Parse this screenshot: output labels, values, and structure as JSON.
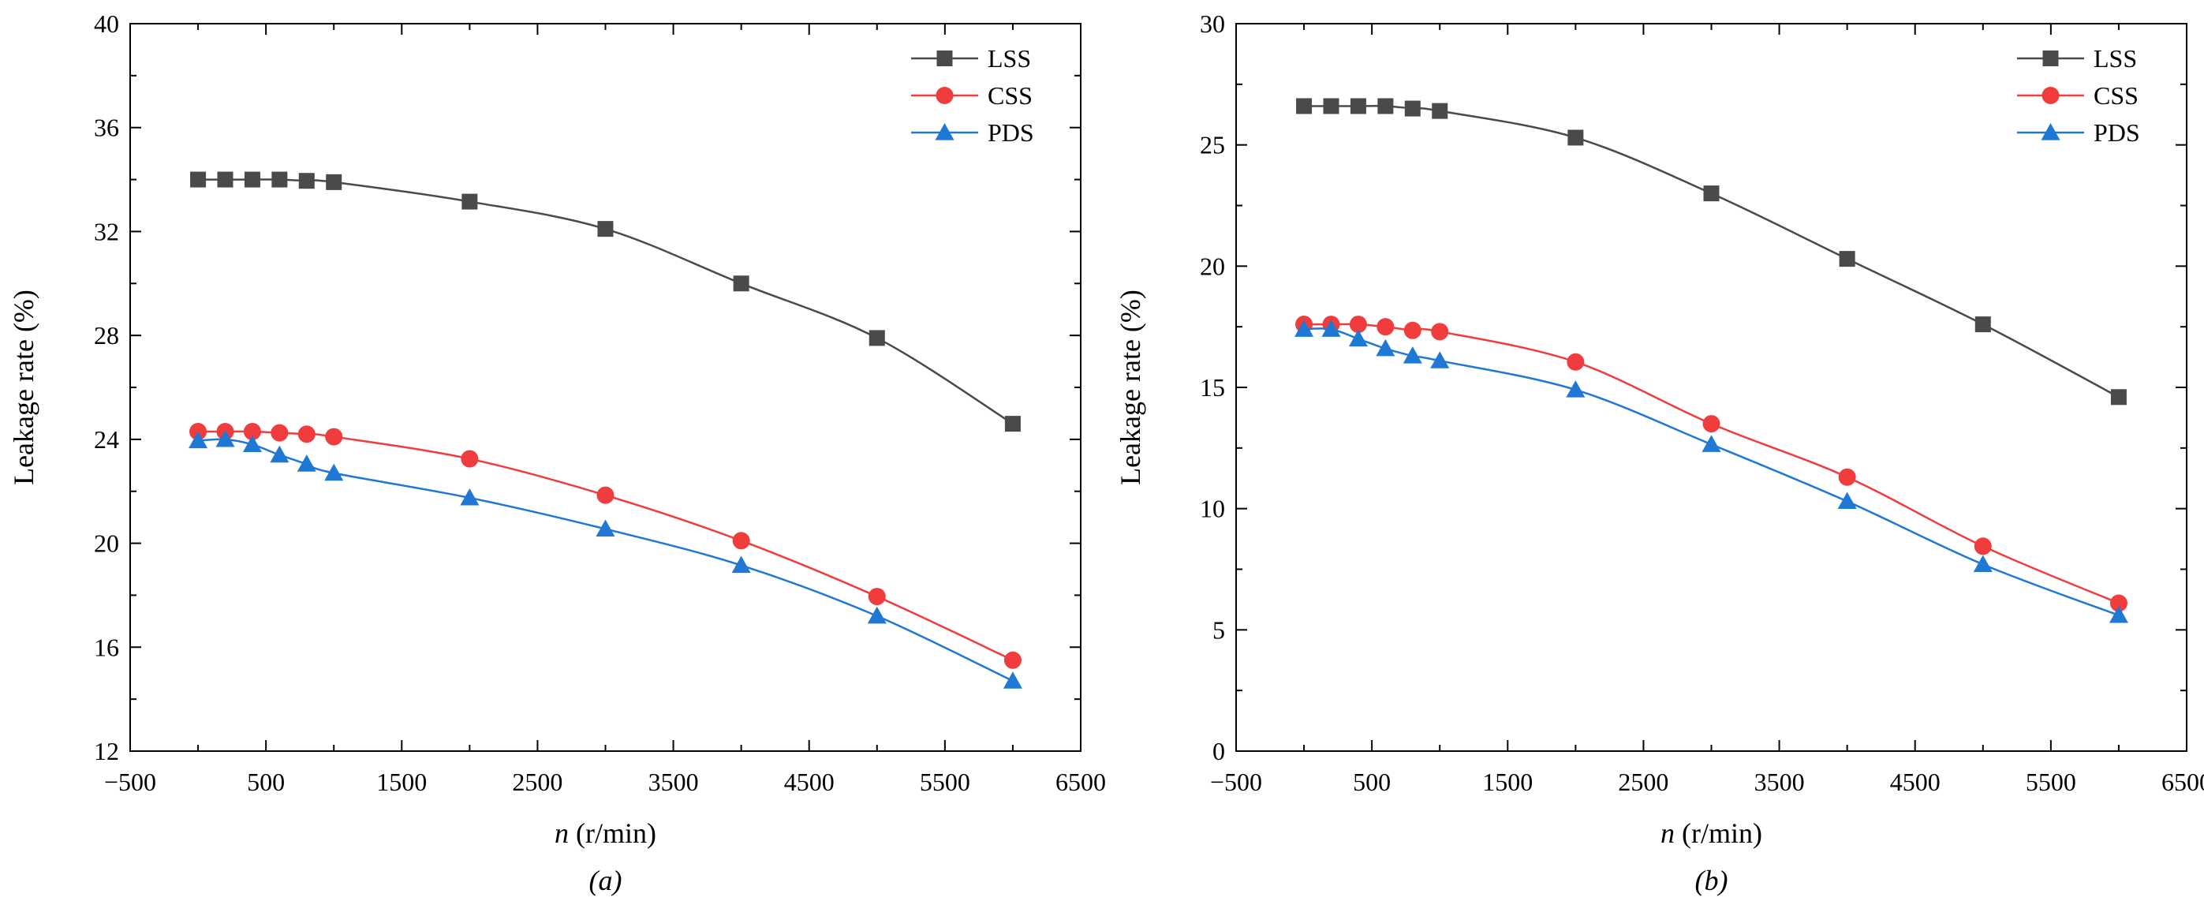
{
  "figure": {
    "colors": {
      "LSS": "#4a4a4a",
      "CSS": "#f03c3c",
      "PDS": "#1f78d4",
      "axis": "#000000"
    }
  },
  "chart_data": [
    {
      "type": "line",
      "panel_label": "(a)",
      "xlabel_italic": "n",
      "xlabel_rest": " (r/min)",
      "ylabel": "Leakage rate (%)",
      "xlim": [
        -500,
        6500
      ],
      "ylim": [
        12,
        40
      ],
      "x_ticks": [
        -500,
        500,
        1500,
        2500,
        3500,
        4500,
        5500,
        6500
      ],
      "y_ticks": [
        12,
        16,
        20,
        24,
        28,
        32,
        36,
        40
      ],
      "legend_position": "top-right",
      "grid": false,
      "series": [
        {
          "name": "LSS",
          "marker": "square",
          "x": [
            0,
            200,
            400,
            600,
            800,
            1000,
            2000,
            3000,
            4000,
            5000,
            6000
          ],
          "y": [
            34.0,
            34.0,
            34.0,
            34.0,
            33.95,
            33.9,
            33.15,
            32.1,
            30.0,
            27.9,
            24.6
          ]
        },
        {
          "name": "CSS",
          "marker": "circle",
          "x": [
            0,
            200,
            400,
            600,
            800,
            1000,
            2000,
            3000,
            4000,
            5000,
            6000
          ],
          "y": [
            24.3,
            24.3,
            24.3,
            24.25,
            24.2,
            24.1,
            23.25,
            21.85,
            20.1,
            17.95,
            15.5
          ]
        },
        {
          "name": "PDS",
          "marker": "triangle",
          "x": [
            0,
            200,
            400,
            600,
            800,
            1000,
            2000,
            3000,
            4000,
            5000,
            6000
          ],
          "y": [
            23.95,
            24.0,
            23.8,
            23.4,
            23.05,
            22.7,
            21.75,
            20.55,
            19.15,
            17.2,
            14.7
          ]
        }
      ]
    },
    {
      "type": "line",
      "panel_label": "(b)",
      "xlabel_italic": "n",
      "xlabel_rest": " (r/min)",
      "ylabel": "Leakage rate (%)",
      "xlim": [
        -500,
        6500
      ],
      "ylim": [
        0,
        30
      ],
      "x_ticks": [
        -500,
        500,
        1500,
        2500,
        3500,
        4500,
        5500,
        6500
      ],
      "y_ticks": [
        0,
        5,
        10,
        15,
        20,
        25,
        30
      ],
      "legend_position": "top-right",
      "grid": false,
      "series": [
        {
          "name": "LSS",
          "marker": "square",
          "x": [
            0,
            200,
            400,
            600,
            800,
            1000,
            2000,
            3000,
            4000,
            5000,
            6000
          ],
          "y": [
            26.6,
            26.6,
            26.6,
            26.6,
            26.5,
            26.4,
            25.3,
            23.0,
            20.3,
            17.6,
            14.6
          ]
        },
        {
          "name": "CSS",
          "marker": "circle",
          "x": [
            0,
            200,
            400,
            600,
            800,
            1000,
            2000,
            3000,
            4000,
            5000,
            6000
          ],
          "y": [
            17.6,
            17.6,
            17.6,
            17.5,
            17.35,
            17.3,
            16.05,
            13.5,
            11.3,
            8.45,
            6.1
          ]
        },
        {
          "name": "PDS",
          "marker": "triangle",
          "x": [
            0,
            200,
            400,
            600,
            800,
            1000,
            2000,
            3000,
            4000,
            5000,
            6000
          ],
          "y": [
            17.4,
            17.4,
            17.0,
            16.6,
            16.3,
            16.1,
            14.9,
            12.65,
            10.3,
            7.7,
            5.6
          ]
        }
      ]
    }
  ]
}
